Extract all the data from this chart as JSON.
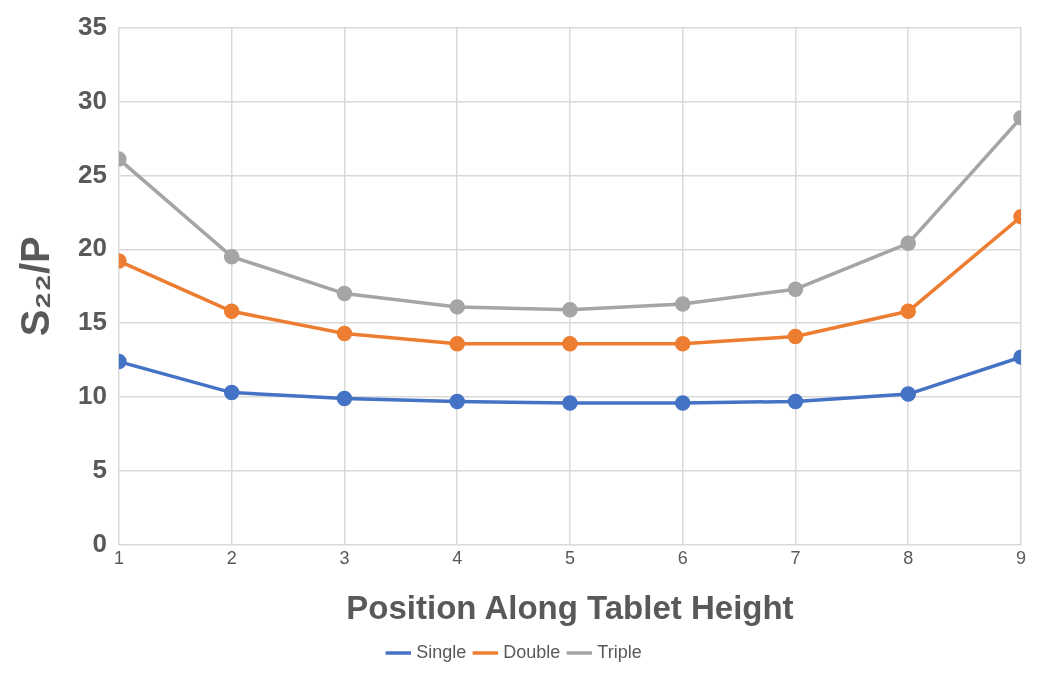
{
  "chart_data": {
    "type": "line",
    "xlabel": "Position Along Tablet Height",
    "ylabel": "S₂₂/P",
    "x": [
      1,
      2,
      3,
      4,
      5,
      6,
      7,
      8,
      9
    ],
    "xlim": [
      1,
      9
    ],
    "xticks": [
      1,
      2,
      3,
      4,
      5,
      6,
      7,
      8,
      9
    ],
    "ylim": [
      0,
      35
    ],
    "yticks": [
      0,
      5,
      10,
      15,
      20,
      25,
      30,
      35
    ],
    "grid": true,
    "legend": "bottom",
    "marker": "circle",
    "line_style": "solid",
    "series": [
      {
        "name": "Single",
        "color": "#4472c4",
        "values": [
          12.4,
          10.3,
          9.9,
          9.7,
          9.6,
          9.6,
          9.7,
          10.2,
          12.7
        ]
      },
      {
        "name": "Double",
        "color": "#ed7d31",
        "values": [
          19.2,
          15.8,
          14.3,
          13.6,
          13.6,
          13.6,
          14.1,
          15.8,
          22.2
        ]
      },
      {
        "name": "Triple",
        "color": "#a5a5a5",
        "values": [
          26.1,
          19.5,
          17.0,
          16.1,
          15.9,
          16.3,
          17.3,
          20.4,
          28.9
        ]
      }
    ]
  }
}
